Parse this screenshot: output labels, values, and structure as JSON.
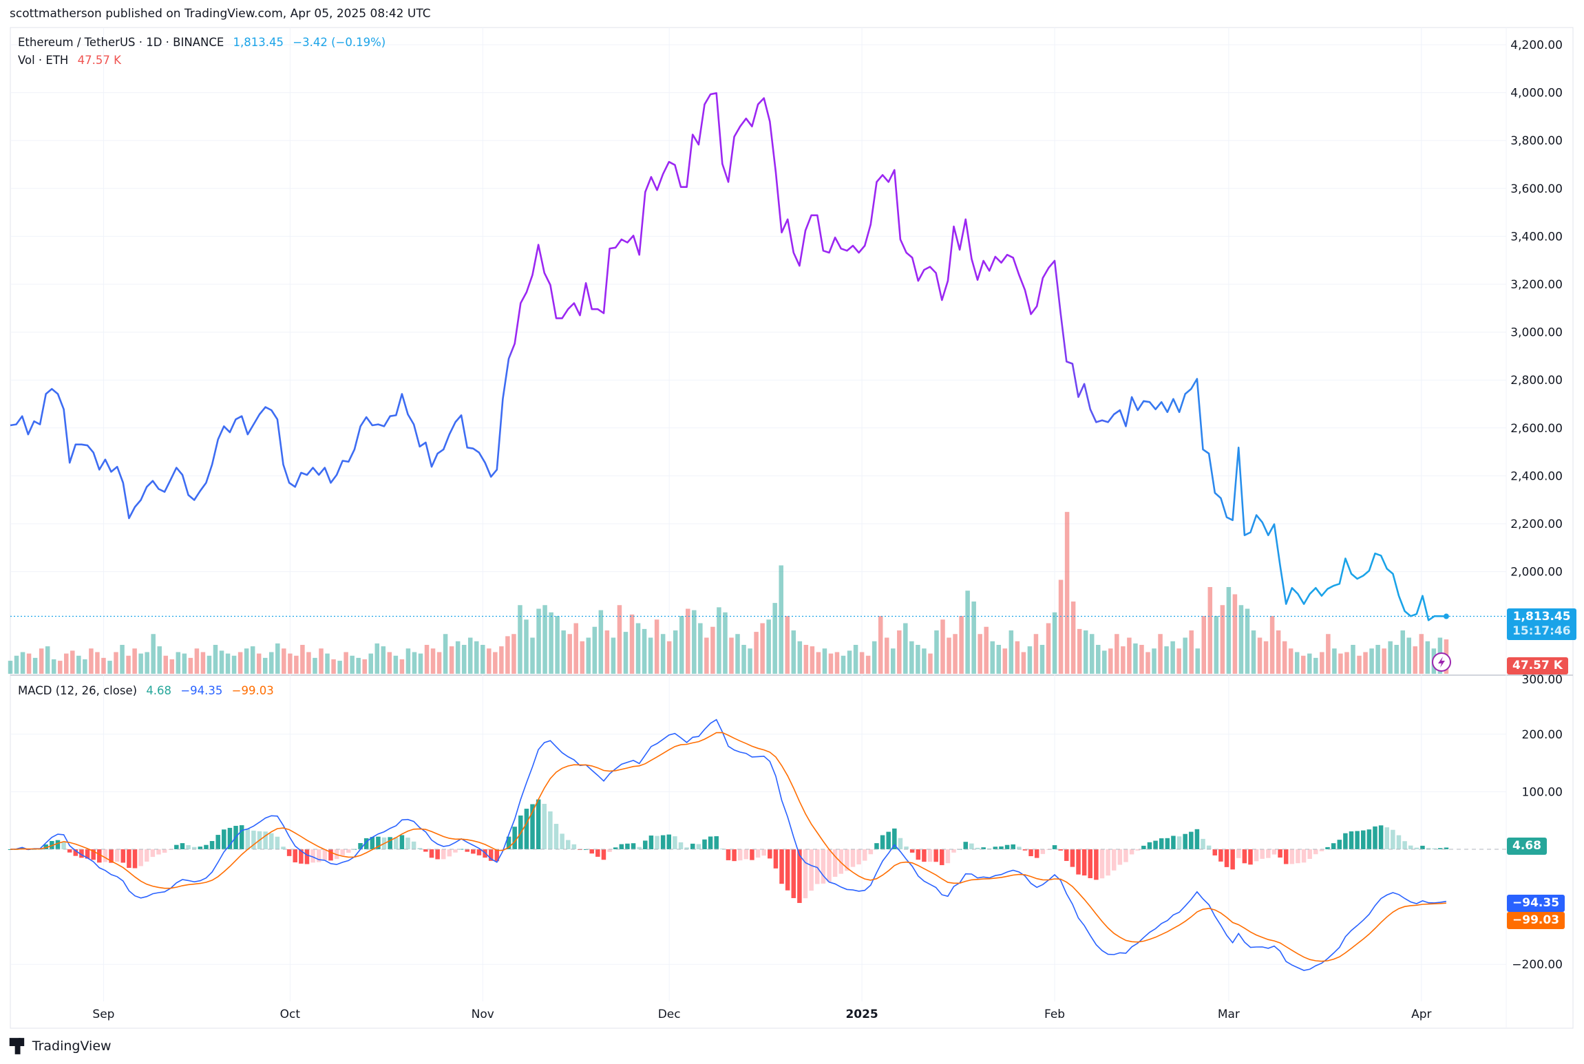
{
  "header": {
    "publisher_line": "scottmatherson published on TradingView.com, Apr 05, 2025 08:42 UTC"
  },
  "legend": {
    "symbol": "Ethereum / TetherUS · 1D · BINANCE",
    "last_price": "1,813.45",
    "change": "−3.42 (−0.19%)",
    "vol_label": "Vol · ETH",
    "vol_value": "47.57 K",
    "macd_label": "MACD (12, 26, close)",
    "macd_hist": "4.68",
    "macd_line": "−94.35",
    "macd_signal": "−99.03"
  },
  "tags": {
    "price": "1,813.45",
    "countdown": "15:17:46",
    "volume": "47.57 K",
    "hist": "4.68",
    "macd": "−94.35",
    "signal": "−99.03"
  },
  "footer": {
    "brand": "TradingView"
  },
  "colors": {
    "price_blue": "#3d6cf2",
    "price_purple": "#9b27f2",
    "price_lightblue": "#1aa3e8",
    "vol_up": "#26a69a",
    "vol_down": "#ef5350",
    "macd_line": "#2962ff",
    "signal_line": "#ff6d00",
    "hist_up_strong": "#26a69a",
    "hist_up_weak": "#b2dfdb",
    "hist_down_strong": "#ff5252",
    "hist_down_weak": "#ffcdd2",
    "last_tag": "#1aa3e8",
    "vol_tag": "#ef5350"
  },
  "chart_data": [
    {
      "type": "line",
      "title": "Ethereum / TetherUS · 1D · BINANCE",
      "start_date": "2024-08-17",
      "end_date": "2025-04-05",
      "x_ticks": [
        {
          "label": "Sep",
          "date": "2024-09-01"
        },
        {
          "label": "Oct",
          "date": "2024-10-01"
        },
        {
          "label": "Nov",
          "date": "2024-11-01"
        },
        {
          "label": "Dec",
          "date": "2024-12-01"
        },
        {
          "label": "2025",
          "date": "2025-01-01"
        },
        {
          "label": "Feb",
          "date": "2025-02-01"
        },
        {
          "label": "Mar",
          "date": "2025-03-01"
        },
        {
          "label": "Apr",
          "date": "2025-04-01"
        }
      ],
      "y_ticks": [
        "4,200.00",
        "4,000.00",
        "3,800.00",
        "3,600.00",
        "3,400.00",
        "3,200.00",
        "3,000.00",
        "2,800.00",
        "2,600.00",
        "2,400.00",
        "2,200.00",
        "2,000.00"
      ],
      "y_tick_values": [
        4200,
        4000,
        3800,
        3600,
        3400,
        3200,
        3000,
        2800,
        2600,
        2400,
        2200,
        2000
      ],
      "ylim": [
        1750,
        4260
      ],
      "grid": true,
      "close": [
        2611,
        2615,
        2649,
        2573,
        2628,
        2615,
        2742,
        2763,
        2742,
        2678,
        2455,
        2531,
        2531,
        2527,
        2497,
        2426,
        2468,
        2417,
        2438,
        2371,
        2223,
        2270,
        2299,
        2354,
        2379,
        2345,
        2333,
        2383,
        2434,
        2404,
        2320,
        2299,
        2337,
        2371,
        2447,
        2552,
        2607,
        2582,
        2636,
        2649,
        2573,
        2615,
        2657,
        2687,
        2674,
        2636,
        2447,
        2371,
        2354,
        2413,
        2404,
        2434,
        2404,
        2434,
        2371,
        2404,
        2463,
        2459,
        2510,
        2607,
        2645,
        2611,
        2615,
        2607,
        2649,
        2653,
        2742,
        2657,
        2615,
        2522,
        2539,
        2438,
        2493,
        2510,
        2573,
        2624,
        2653,
        2518,
        2514,
        2497,
        2455,
        2396,
        2426,
        2721,
        2889,
        2952,
        3121,
        3167,
        3239,
        3365,
        3247,
        3197,
        3058,
        3058,
        3096,
        3121,
        3070,
        3205,
        3096,
        3096,
        3079,
        3349,
        3353,
        3387,
        3374,
        3403,
        3323,
        3585,
        3648,
        3593,
        3660,
        3711,
        3698,
        3606,
        3606,
        3825,
        3783,
        3951,
        3993,
        3998,
        3703,
        3627,
        3816,
        3859,
        3892,
        3859,
        3951,
        3977,
        3880,
        3669,
        3416,
        3471,
        3332,
        3277,
        3424,
        3488,
        3488,
        3340,
        3332,
        3395,
        3349,
        3340,
        3361,
        3332,
        3361,
        3450,
        3627,
        3656,
        3627,
        3677,
        3387,
        3332,
        3311,
        3214,
        3260,
        3273,
        3247,
        3134,
        3214,
        3441,
        3344,
        3471,
        3306,
        3218,
        3298,
        3256,
        3315,
        3290,
        3323,
        3311,
        3239,
        3176,
        3075,
        3108,
        3226,
        3269,
        3298,
        3079,
        2877,
        2868,
        2729,
        2784,
        2678,
        2624,
        2632,
        2624,
        2657,
        2674,
        2607,
        2729,
        2674,
        2712,
        2708,
        2678,
        2708,
        2666,
        2721,
        2666,
        2742,
        2763,
        2805,
        2510,
        2493,
        2329,
        2307,
        2227,
        2215,
        2518,
        2152,
        2164,
        2236,
        2206,
        2152,
        2198,
        2025,
        1865,
        1932,
        1907,
        1865,
        1907,
        1932,
        1899,
        1928,
        1941,
        1949,
        2055,
        1991,
        1970,
        1983,
        2004,
        2076,
        2067,
        2012,
        1991,
        1899,
        1835,
        1814,
        1823,
        1899,
        1797,
        1814,
        1814,
        1813.45
      ],
      "last_price": 1813.45
    },
    {
      "type": "bar",
      "name": "Vol · ETH",
      "unit": "K",
      "start_date": "2024-08-17",
      "values": [
        18,
        25,
        30,
        28,
        22,
        35,
        38,
        20,
        18,
        28,
        32,
        25,
        20,
        35,
        30,
        22,
        18,
        30,
        40,
        25,
        35,
        28,
        30,
        55,
        38,
        25,
        20,
        30,
        28,
        22,
        35,
        30,
        25,
        40,
        32,
        28,
        25,
        30,
        35,
        38,
        28,
        22,
        30,
        42,
        35,
        28,
        25,
        40,
        30,
        22,
        35,
        28,
        20,
        18,
        30,
        25,
        22,
        20,
        28,
        42,
        38,
        30,
        25,
        20,
        35,
        30,
        28,
        40,
        35,
        30,
        55,
        38,
        45,
        40,
        50,
        45,
        40,
        35,
        30,
        38,
        52,
        55,
        95,
        75,
        50,
        90,
        95,
        85,
        80,
        60,
        55,
        70,
        45,
        50,
        65,
        88,
        60,
        50,
        95,
        58,
        82,
        70,
        62,
        50,
        75,
        55,
        45,
        60,
        80,
        90,
        88,
        70,
        50,
        65,
        92,
        85,
        50,
        55,
        40,
        35,
        58,
        70,
        75,
        98,
        150,
        80,
        60,
        45,
        40,
        38,
        30,
        35,
        28,
        30,
        25,
        32,
        40,
        30,
        25,
        45,
        80,
        50,
        35,
        60,
        70,
        45,
        40,
        35,
        28,
        60,
        75,
        50,
        55,
        80,
        115,
        100,
        55,
        65,
        45,
        40,
        35,
        60,
        45,
        30,
        38,
        55,
        40,
        70,
        85,
        130,
        224,
        100,
        62,
        60,
        55,
        40,
        32,
        35,
        55,
        38,
        50,
        42,
        40,
        30,
        35,
        55,
        38,
        45,
        35,
        50,
        60,
        35,
        80,
        120,
        80,
        95,
        120,
        110,
        95,
        90,
        60,
        50,
        45,
        80,
        60,
        45,
        35,
        30,
        25,
        28,
        22,
        30,
        55,
        35,
        28,
        30,
        40,
        25,
        30,
        35,
        40,
        35,
        45,
        40,
        60,
        50,
        38,
        55,
        45,
        35,
        50,
        47.57
      ],
      "last_value": 47.57
    },
    {
      "type": "line",
      "name": "MACD (12, 26, close)",
      "params": {
        "fast": 12,
        "slow": 26,
        "source": "close"
      },
      "series": [
        {
          "name": "MACD"
        },
        {
          "name": "Signal"
        },
        {
          "name": "Histogram"
        }
      ],
      "y_ticks": [
        "300.00",
        "200.00",
        "100.00",
        "−200.00"
      ],
      "y_tick_values": [
        300,
        200,
        100,
        -200
      ],
      "ylim": [
        -250,
        300
      ],
      "last_values": {
        "histogram": 4.68,
        "macd": -94.35,
        "signal": -99.03
      }
    }
  ]
}
